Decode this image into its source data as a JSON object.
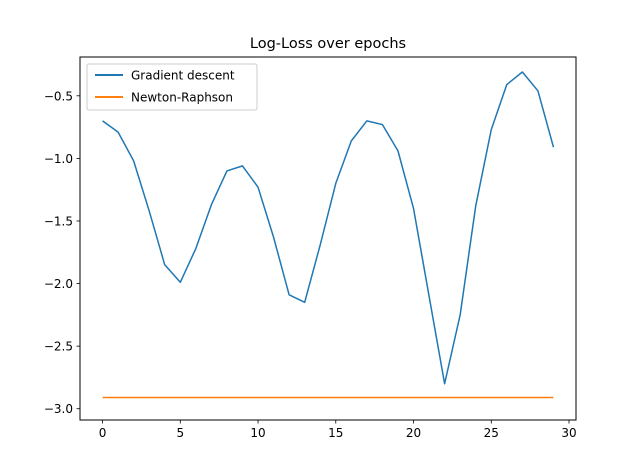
{
  "chart_data": {
    "type": "line",
    "title": "Log-Loss over epochs",
    "xlabel": "",
    "ylabel": "",
    "xlim": [
      -1.45,
      30.45
    ],
    "ylim": [
      -3.09,
      -0.19
    ],
    "xticks": [
      0,
      5,
      10,
      15,
      20,
      25,
      30
    ],
    "xtick_labels": [
      "0",
      "5",
      "10",
      "15",
      "20",
      "25",
      "30"
    ],
    "yticks": [
      -3.0,
      -2.5,
      -2.0,
      -1.5,
      -1.0,
      -0.5
    ],
    "ytick_labels": [
      "−3.0",
      "−2.5",
      "−2.0",
      "−1.5",
      "−1.0",
      "−0.5"
    ],
    "grid": false,
    "legend_position": "upper-left",
    "series": [
      {
        "name": "Gradient descent",
        "color": "#1f77b4",
        "x": [
          0,
          1,
          2,
          3,
          4,
          5,
          6,
          7,
          8,
          9,
          10,
          11,
          12,
          13,
          14,
          15,
          16,
          17,
          18,
          19,
          20,
          21,
          22,
          23,
          24,
          25,
          26,
          27,
          28,
          29
        ],
        "y": [
          -0.7,
          -0.79,
          -1.02,
          -1.42,
          -1.85,
          -1.99,
          -1.72,
          -1.37,
          -1.1,
          -1.06,
          -1.23,
          -1.63,
          -2.09,
          -2.15,
          -1.69,
          -1.2,
          -0.86,
          -0.7,
          -0.73,
          -0.94,
          -1.4,
          -2.1,
          -2.8,
          -2.25,
          -1.38,
          -0.77,
          -0.41,
          -0.31,
          -0.46,
          -0.91
        ]
      },
      {
        "name": "Newton-Raphson",
        "color": "#ff7f0e",
        "x": [
          0,
          1,
          2,
          3,
          4,
          5,
          6,
          7,
          8,
          9,
          10,
          11,
          12,
          13,
          14,
          15,
          16,
          17,
          18,
          19,
          20,
          21,
          22,
          23,
          24,
          25,
          26,
          27,
          28,
          29
        ],
        "y": [
          -2.91,
          -2.91,
          -2.91,
          -2.91,
          -2.91,
          -2.91,
          -2.91,
          -2.91,
          -2.91,
          -2.91,
          -2.91,
          -2.91,
          -2.91,
          -2.91,
          -2.91,
          -2.91,
          -2.91,
          -2.91,
          -2.91,
          -2.91,
          -2.91,
          -2.91,
          -2.91,
          -2.91,
          -2.91,
          -2.91,
          -2.91,
          -2.91,
          -2.91,
          -2.91
        ]
      }
    ]
  }
}
